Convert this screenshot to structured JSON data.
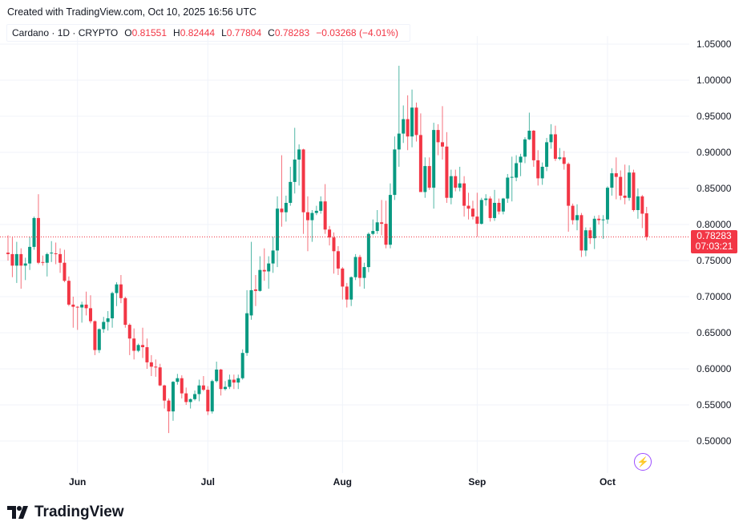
{
  "header": {
    "created": "Created with TradingView.com, Oct 10, 2025 16:56 UTC",
    "symbol": "Cardano · 1D · CRYPTO",
    "o_label": "O",
    "o_value": "0.81551",
    "h_label": "H",
    "h_value": "0.82444",
    "l_label": "L",
    "l_value": "0.77804",
    "c_label": "C",
    "c_value": "0.78283",
    "change": "−0.03268 (−4.01%)"
  },
  "price_tag": {
    "price": "0.78283",
    "countdown": "07:03:21"
  },
  "logo": {
    "text": "TradingView"
  },
  "icons": {
    "logo": "tradingview-logo-icon",
    "bolt": "lightning-icon"
  },
  "colors": {
    "up": "#089981",
    "down": "#F23645",
    "grid": "#f0f3fa",
    "last_price": "#F23645"
  },
  "chart_data": {
    "type": "candlestick",
    "title": "Cardano · 1D · CRYPTO",
    "start_date": "2025-05-16",
    "last_price": 0.78283,
    "ylim": [
      0.455,
      1.06
    ],
    "y_ticks": [
      "0.50000",
      "0.55000",
      "0.60000",
      "0.65000",
      "0.70000",
      "0.75000",
      "0.80000",
      "0.85000",
      "0.90000",
      "0.95000",
      "1.00000",
      "1.05000"
    ],
    "x_ticks": [
      {
        "label": "Jun",
        "date": "2025-06-01"
      },
      {
        "label": "Jul",
        "date": "2025-07-01"
      },
      {
        "label": "Aug",
        "date": "2025-08-01"
      },
      {
        "label": "Sep",
        "date": "2025-09-01"
      },
      {
        "label": "Oct",
        "date": "2025-10-01"
      }
    ],
    "ohlc_fields": [
      "open",
      "high",
      "low",
      "close"
    ],
    "ohlc": [
      [
        0.761,
        0.785,
        0.75,
        0.759
      ],
      [
        0.759,
        0.782,
        0.727,
        0.743
      ],
      [
        0.743,
        0.776,
        0.719,
        0.759
      ],
      [
        0.759,
        0.767,
        0.711,
        0.743
      ],
      [
        0.743,
        0.754,
        0.723,
        0.746
      ],
      [
        0.746,
        0.783,
        0.737,
        0.769
      ],
      [
        0.769,
        0.811,
        0.765,
        0.809
      ],
      [
        0.809,
        0.842,
        0.745,
        0.747
      ],
      [
        0.748,
        0.757,
        0.743,
        0.747
      ],
      [
        0.747,
        0.761,
        0.728,
        0.759
      ],
      [
        0.76,
        0.777,
        0.748,
        0.761
      ],
      [
        0.76,
        0.775,
        0.745,
        0.759
      ],
      [
        0.759,
        0.767,
        0.733,
        0.747
      ],
      [
        0.747,
        0.765,
        0.72,
        0.722
      ],
      [
        0.722,
        0.728,
        0.687,
        0.689
      ],
      [
        0.689,
        0.7,
        0.657,
        0.686
      ],
      [
        0.686,
        0.687,
        0.654,
        0.6855
      ],
      [
        0.685,
        0.693,
        0.664,
        0.689
      ],
      [
        0.689,
        0.707,
        0.674,
        0.684
      ],
      [
        0.684,
        0.702,
        0.663,
        0.666
      ],
      [
        0.666,
        0.667,
        0.619,
        0.626
      ],
      [
        0.626,
        0.656,
        0.622,
        0.655
      ],
      [
        0.655,
        0.672,
        0.65,
        0.665
      ],
      [
        0.665,
        0.68,
        0.653,
        0.67
      ],
      [
        0.67,
        0.707,
        0.657,
        0.705
      ],
      [
        0.705,
        0.72,
        0.687,
        0.717
      ],
      [
        0.717,
        0.73,
        0.691,
        0.698
      ],
      [
        0.698,
        0.7,
        0.657,
        0.661
      ],
      [
        0.661,
        0.663,
        0.619,
        0.642
      ],
      [
        0.642,
        0.656,
        0.613,
        0.625
      ],
      [
        0.625,
        0.635,
        0.623,
        0.633
      ],
      [
        0.633,
        0.657,
        0.615,
        0.63
      ],
      [
        0.63,
        0.642,
        0.6,
        0.609
      ],
      [
        0.609,
        0.619,
        0.59,
        0.603
      ],
      [
        0.603,
        0.613,
        0.589,
        0.602
      ],
      [
        0.602,
        0.607,
        0.576,
        0.577
      ],
      [
        0.577,
        0.578,
        0.545,
        0.556
      ],
      [
        0.556,
        0.559,
        0.511,
        0.541
      ],
      [
        0.541,
        0.583,
        0.528,
        0.582
      ],
      [
        0.582,
        0.593,
        0.578,
        0.587
      ],
      [
        0.587,
        0.591,
        0.559,
        0.566
      ],
      [
        0.566,
        0.574,
        0.55,
        0.554
      ],
      [
        0.554,
        0.559,
        0.545,
        0.558
      ],
      [
        0.558,
        0.57,
        0.556,
        0.565
      ],
      [
        0.565,
        0.585,
        0.555,
        0.577
      ],
      [
        0.577,
        0.59,
        0.569,
        0.571
      ],
      [
        0.571,
        0.576,
        0.536,
        0.541
      ],
      [
        0.541,
        0.585,
        0.538,
        0.583
      ],
      [
        0.583,
        0.61,
        0.581,
        0.599
      ],
      [
        0.599,
        0.6,
        0.563,
        0.572
      ],
      [
        0.572,
        0.583,
        0.57,
        0.575
      ],
      [
        0.575,
        0.592,
        0.572,
        0.585
      ],
      [
        0.585,
        0.592,
        0.572,
        0.581
      ],
      [
        0.581,
        0.592,
        0.572,
        0.587
      ],
      [
        0.587,
        0.627,
        0.585,
        0.622
      ],
      [
        0.622,
        0.709,
        0.618,
        0.677
      ],
      [
        0.674,
        0.776,
        0.668,
        0.709
      ],
      [
        0.71,
        0.73,
        0.687,
        0.708
      ],
      [
        0.708,
        0.756,
        0.707,
        0.737
      ],
      [
        0.737,
        0.767,
        0.722,
        0.735
      ],
      [
        0.735,
        0.756,
        0.711,
        0.746
      ],
      [
        0.746,
        0.783,
        0.733,
        0.764
      ],
      [
        0.764,
        0.839,
        0.741,
        0.822
      ],
      [
        0.822,
        0.896,
        0.797,
        0.817
      ],
      [
        0.817,
        0.84,
        0.804,
        0.83
      ],
      [
        0.83,
        0.88,
        0.826,
        0.859
      ],
      [
        0.859,
        0.934,
        0.843,
        0.89
      ],
      [
        0.89,
        0.911,
        0.854,
        0.904
      ],
      [
        0.904,
        0.905,
        0.787,
        0.817
      ],
      [
        0.817,
        0.839,
        0.763,
        0.806
      ],
      [
        0.806,
        0.82,
        0.776,
        0.816
      ],
      [
        0.816,
        0.826,
        0.813,
        0.819
      ],
      [
        0.819,
        0.839,
        0.815,
        0.832
      ],
      [
        0.832,
        0.856,
        0.787,
        0.793
      ],
      [
        0.793,
        0.798,
        0.771,
        0.782
      ],
      [
        0.782,
        0.789,
        0.732,
        0.763
      ],
      [
        0.763,
        0.77,
        0.73,
        0.739
      ],
      [
        0.739,
        0.741,
        0.696,
        0.714
      ],
      [
        0.714,
        0.719,
        0.685,
        0.696
      ],
      [
        0.696,
        0.728,
        0.687,
        0.727
      ],
      [
        0.727,
        0.759,
        0.723,
        0.755
      ],
      [
        0.755,
        0.758,
        0.714,
        0.726
      ],
      [
        0.726,
        0.747,
        0.711,
        0.741
      ],
      [
        0.741,
        0.789,
        0.734,
        0.787
      ],
      [
        0.787,
        0.807,
        0.785,
        0.791
      ],
      [
        0.791,
        0.82,
        0.787,
        0.803
      ],
      [
        0.803,
        0.834,
        0.785,
        0.801
      ],
      [
        0.801,
        0.833,
        0.767,
        0.772
      ],
      [
        0.772,
        0.857,
        0.767,
        0.841
      ],
      [
        0.841,
        0.922,
        0.834,
        0.904
      ],
      [
        0.904,
        1.02,
        0.88,
        0.926
      ],
      [
        0.926,
        0.965,
        0.913,
        0.946
      ],
      [
        0.946,
        0.979,
        0.903,
        0.922
      ],
      [
        0.922,
        0.987,
        0.907,
        0.962
      ],
      [
        0.962,
        0.969,
        0.915,
        0.924
      ],
      [
        0.924,
        0.954,
        0.845,
        0.845
      ],
      [
        0.845,
        0.893,
        0.837,
        0.881
      ],
      [
        0.881,
        0.893,
        0.848,
        0.851
      ],
      [
        0.851,
        0.941,
        0.822,
        0.931
      ],
      [
        0.931,
        0.939,
        0.896,
        0.914
      ],
      [
        0.914,
        0.964,
        0.89,
        0.908
      ],
      [
        0.908,
        0.928,
        0.83,
        0.837
      ],
      [
        0.837,
        0.876,
        0.828,
        0.867
      ],
      [
        0.867,
        0.876,
        0.846,
        0.851
      ],
      [
        0.851,
        0.88,
        0.846,
        0.857
      ],
      [
        0.857,
        0.867,
        0.811,
        0.826
      ],
      [
        0.826,
        0.844,
        0.807,
        0.822
      ],
      [
        0.822,
        0.833,
        0.807,
        0.811
      ],
      [
        0.811,
        0.844,
        0.783,
        0.801
      ],
      [
        0.801,
        0.837,
        0.8,
        0.834
      ],
      [
        0.834,
        0.842,
        0.826,
        0.836
      ],
      [
        0.836,
        0.839,
        0.804,
        0.809
      ],
      [
        0.809,
        0.848,
        0.805,
        0.83
      ],
      [
        0.83,
        0.836,
        0.814,
        0.818
      ],
      [
        0.818,
        0.837,
        0.814,
        0.836
      ],
      [
        0.836,
        0.87,
        0.83,
        0.865
      ],
      [
        0.865,
        0.894,
        0.832,
        0.866
      ],
      [
        0.865,
        0.896,
        0.86,
        0.885
      ],
      [
        0.886,
        0.898,
        0.867,
        0.894
      ],
      [
        0.894,
        0.921,
        0.885,
        0.918
      ],
      [
        0.918,
        0.955,
        0.917,
        0.93
      ],
      [
        0.93,
        0.931,
        0.88,
        0.889
      ],
      [
        0.889,
        0.903,
        0.854,
        0.864
      ],
      [
        0.864,
        0.886,
        0.855,
        0.88
      ],
      [
        0.88,
        0.92,
        0.874,
        0.914
      ],
      [
        0.914,
        0.939,
        0.905,
        0.925
      ],
      [
        0.925,
        0.937,
        0.888,
        0.891
      ],
      [
        0.891,
        0.906,
        0.889,
        0.893
      ],
      [
        0.893,
        0.902,
        0.876,
        0.884
      ],
      [
        0.884,
        0.886,
        0.79,
        0.826
      ],
      [
        0.826,
        0.829,
        0.8,
        0.806
      ],
      [
        0.806,
        0.828,
        0.792,
        0.813
      ],
      [
        0.813,
        0.816,
        0.755,
        0.764
      ],
      [
        0.764,
        0.796,
        0.756,
        0.792
      ],
      [
        0.792,
        0.796,
        0.773,
        0.781
      ],
      [
        0.781,
        0.812,
        0.766,
        0.808
      ],
      [
        0.808,
        0.813,
        0.8,
        0.806
      ],
      [
        0.806,
        0.813,
        0.78,
        0.807
      ],
      [
        0.807,
        0.853,
        0.801,
        0.851
      ],
      [
        0.851,
        0.878,
        0.84,
        0.871
      ],
      [
        0.871,
        0.893,
        0.835,
        0.866
      ],
      [
        0.866,
        0.875,
        0.834,
        0.84
      ],
      [
        0.84,
        0.883,
        0.828,
        0.837
      ],
      [
        0.837,
        0.882,
        0.833,
        0.872
      ],
      [
        0.872,
        0.876,
        0.818,
        0.82
      ],
      [
        0.82,
        0.85,
        0.808,
        0.839
      ],
      [
        0.839,
        0.841,
        0.795,
        0.815
      ],
      [
        0.81551,
        0.82444,
        0.77804,
        0.78283
      ]
    ]
  }
}
